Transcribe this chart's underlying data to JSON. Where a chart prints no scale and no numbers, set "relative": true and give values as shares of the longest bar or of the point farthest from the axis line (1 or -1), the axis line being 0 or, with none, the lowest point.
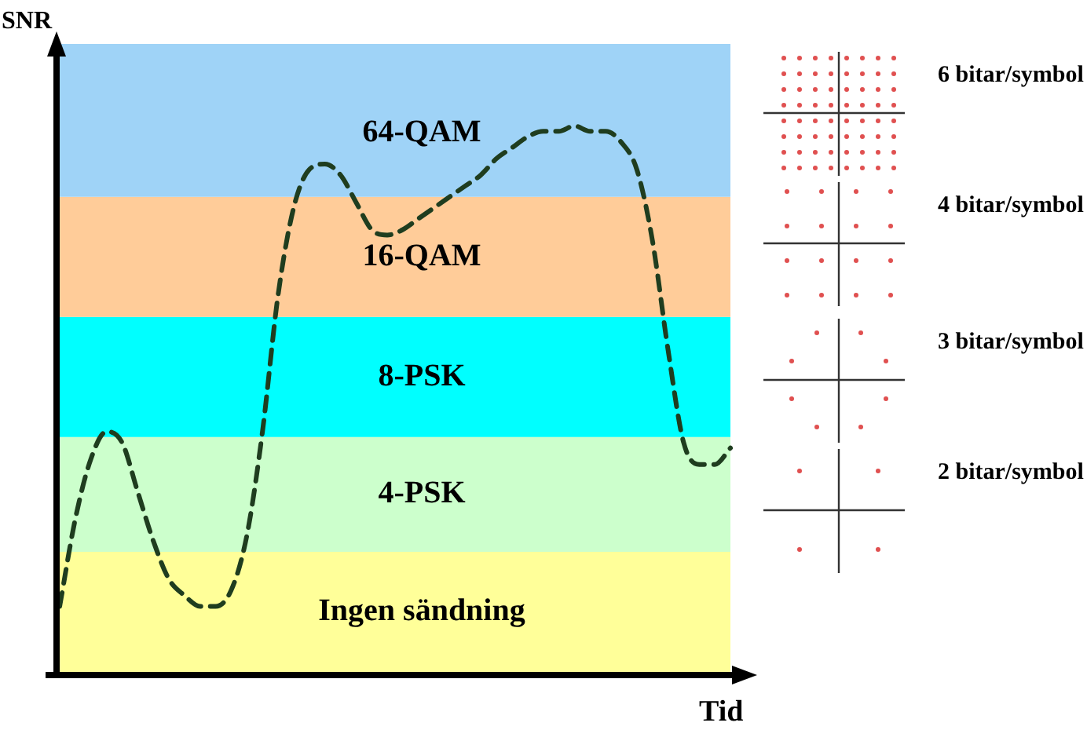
{
  "chart_data": {
    "type": "line",
    "xlabel": "Tid",
    "ylabel": "SNR",
    "relative": true,
    "line_style": "dashed",
    "marker": "none",
    "categories": [
      null,
      null,
      null,
      null,
      null,
      null,
      null,
      null,
      null,
      null,
      null,
      null,
      null,
      null,
      null,
      null,
      null,
      null,
      null,
      null,
      null,
      null,
      null,
      null,
      null,
      null,
      null,
      null,
      null,
      null,
      null,
      null,
      null,
      null,
      null,
      null,
      null,
      null,
      null,
      null,
      null,
      null,
      null,
      null
    ],
    "series": [
      {
        "color": "#1f3d1f",
        "values": [
          0.12,
          0.28,
          0.39,
          0.44,
          0.42,
          0.33,
          0.24,
          0.17,
          0.14,
          0.12,
          0.12,
          0.15,
          0.25,
          0.44,
          0.69,
          0.85,
          0.92,
          0.93,
          0.91,
          0.86,
          0.81,
          0.8,
          0.81,
          0.83,
          0.85,
          0.87,
          0.89,
          0.91,
          0.94,
          0.96,
          0.98,
          0.99,
          0.99,
          1,
          0.99,
          0.99,
          0.97,
          0.92,
          0.79,
          0.59,
          0.42,
          0.38,
          0.38,
          0.41
        ]
      }
    ],
    "bands": [
      {
        "axis": "y",
        "from": 0,
        "to": 0.22,
        "label": "Ingen sändning",
        "color": "#ffff99"
      },
      {
        "axis": "y",
        "from": 0.22,
        "to": 0.43,
        "label": "4-PSK",
        "color": "#ccffcc"
      },
      {
        "axis": "y",
        "from": 0.43,
        "to": 0.65,
        "label": "8-PSK",
        "color": "#00ffff"
      },
      {
        "axis": "y",
        "from": 0.65,
        "to": 0.87,
        "label": "16-QAM",
        "color": "#ffcc99"
      },
      {
        "axis": "y",
        "from": 0.87,
        "to": 1.15,
        "label": "64-QAM",
        "color": "#9fd3f7"
      }
    ],
    "annotations": [
      "6 bitar/symbol",
      "4 bitar/symbol",
      "3 bitar/symbol",
      "2 bitar/symbol"
    ]
  }
}
